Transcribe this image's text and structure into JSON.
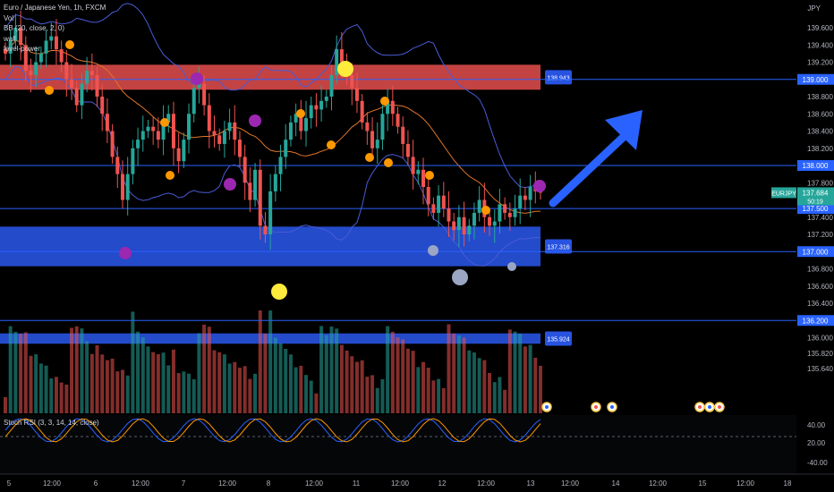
{
  "header": {
    "symbol_title": "Euro / Japanese Yen, 1h, FXCM",
    "indicators": [
      "Vol",
      "BB (20, close, 2, 0)",
      "wall",
      "level-power"
    ],
    "axis_unit": "JPY"
  },
  "rsi_panel": {
    "label": "Stoch RSI (3, 3, 14, 14, close)",
    "ticks": [
      "40.00",
      "20.00",
      "-40.00"
    ]
  },
  "colors": {
    "background": "#000000",
    "bull": "#26a69a",
    "bear": "#ef5350",
    "level_line": "#2962ff",
    "zone_blue": "#2753e0",
    "zone_red": "#d84a4a",
    "bb_band": "#4a5bd6",
    "bb_basis": "#e0762a",
    "dot_orange": "#ff9800",
    "dot_purple": "#9c27b0",
    "dot_yellow": "#ffeb3b",
    "dot_gray": "#9aa6c4",
    "arrow": "#2962ff",
    "price_tag": "#26a69a"
  },
  "chart_data": {
    "type": "candlestick",
    "symbol": "EURJPY",
    "timeframe": "1h",
    "y_ticks": [
      "139.600",
      "139.400",
      "139.200",
      "139.000",
      "138.800",
      "138.600",
      "138.400",
      "138.200",
      "138.000",
      "137.800",
      "137.684",
      "137.500",
      "137.400",
      "137.200",
      "137.000",
      "136.800",
      "136.600",
      "136.400",
      "136.200",
      "136.000",
      "135.820",
      "135.640"
    ],
    "x_ticks": [
      "5",
      "12:00",
      "6",
      "12:00",
      "7",
      "12:00",
      "8",
      "12:00",
      "11",
      "12:00",
      "12",
      "12:00",
      "13",
      "12:00",
      "14",
      "12:00",
      "15",
      "12:00",
      "18"
    ],
    "ylim": [
      135.6,
      139.75
    ],
    "current_price": {
      "symbol": "EURJPY",
      "value": "137.684",
      "countdown": "50:19"
    },
    "levels": [
      "139.000",
      "138.000",
      "137.500",
      "137.000",
      "136.200"
    ],
    "zones": [
      {
        "label": "138.943",
        "color": "red",
        "top": 139.17,
        "bottom": 138.88
      },
      {
        "label": "137.316",
        "color": "blue",
        "top": 137.29,
        "bottom": 136.83
      },
      {
        "label": "135.924",
        "color": "blue",
        "top": 136.05,
        "bottom": 135.93
      }
    ],
    "closes": [
      139.3,
      139.45,
      139.6,
      139.4,
      139.1,
      139.05,
      139.2,
      139.3,
      139.45,
      139.5,
      139.35,
      139.2,
      139.0,
      138.9,
      138.7,
      138.95,
      139.1,
      139.05,
      138.8,
      138.6,
      138.4,
      138.1,
      137.9,
      137.6,
      137.9,
      138.2,
      138.3,
      138.4,
      138.45,
      138.4,
      138.3,
      138.5,
      138.6,
      138.2,
      138.05,
      138.3,
      138.6,
      138.9,
      138.95,
      138.7,
      138.4,
      138.35,
      138.25,
      138.4,
      138.5,
      138.3,
      138.1,
      137.8,
      137.6,
      137.95,
      137.3,
      137.2,
      137.7,
      137.9,
      138.1,
      138.3,
      138.5,
      138.6,
      138.4,
      138.55,
      138.7,
      138.65,
      138.75,
      138.8,
      139.05,
      139.35,
      139.2,
      139.05,
      138.9,
      138.75,
      138.5,
      138.4,
      138.2,
      138.3,
      138.6,
      138.75,
      138.6,
      138.45,
      138.25,
      138.1,
      137.9,
      137.95,
      137.75,
      137.55,
      137.45,
      137.65,
      137.5,
      137.35,
      137.25,
      137.4,
      137.2,
      137.3,
      137.45,
      137.6,
      137.4,
      137.3,
      137.35,
      137.55,
      137.45,
      137.4,
      137.5,
      137.65,
      137.6,
      137.75,
      137.7,
      137.684
    ],
    "bollinger_bands": {
      "period": 20,
      "source": "close",
      "mult": 2
    },
    "volume": {
      "panel": true
    },
    "stoch_rsi": {
      "k": 3,
      "d": 3,
      "rsi_length": 14,
      "stoch_length": 14,
      "source": "close"
    }
  }
}
